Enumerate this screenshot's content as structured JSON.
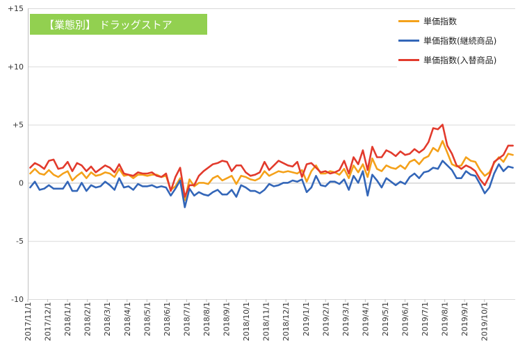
{
  "chart_data": {
    "type": "line",
    "title": "【業態別】 ドラッグストア",
    "title_bg": "#92D050",
    "ylim": [
      -10,
      15
    ],
    "y_ticks": [
      15,
      10,
      5,
      0,
      -5,
      -10
    ],
    "y_tick_labels": [
      "+15",
      "+10",
      "+5",
      "0",
      "-5",
      "-10"
    ],
    "x_tick_labels": [
      "2017/11/1",
      "2017/12/1",
      "2018/1/1",
      "2018/2/1",
      "2018/3/1",
      "2018/4/1",
      "2018/5/1",
      "2018/6/1",
      "2018/7/1",
      "2018/8/1",
      "2018/9/1",
      "2018/10/1",
      "2018/11/1",
      "2018/12/1",
      "2019/1/1",
      "2019/2/1",
      "2019/3/1",
      "2019/4/1",
      "2019/5/1",
      "2019/6/1",
      "2019/7/1",
      "2019/8/1",
      "2019/9/1",
      "2019/10/1"
    ],
    "grid": "horizontal",
    "legend_position": "top-right",
    "series": [
      {
        "name": "単価指数",
        "color": "#F4A11A",
        "values": [
          0.8,
          1.2,
          0.8,
          0.7,
          1.1,
          0.7,
          0.5,
          0.8,
          1.0,
          0.2,
          0.6,
          0.9,
          0.4,
          0.9,
          0.6,
          0.7,
          0.9,
          0.8,
          0.5,
          1.2,
          0.6,
          0.7,
          0.4,
          0.7,
          0.7,
          0.6,
          0.7,
          0.7,
          0.5,
          0.6,
          -0.6,
          -0.3,
          0.4,
          -1.5,
          0.3,
          -0.3,
          0.0,
          0.0,
          -0.1,
          0.4,
          0.6,
          0.2,
          0.4,
          0.6,
          -0.1,
          0.6,
          0.5,
          0.3,
          0.2,
          0.4,
          1.0,
          0.6,
          0.8,
          1.0,
          0.9,
          1.0,
          0.9,
          0.8,
          1.1,
          0.1,
          1.0,
          1.5,
          0.8,
          0.8,
          1.0,
          0.9,
          0.7,
          1.2,
          0.4,
          1.5,
          0.9,
          1.6,
          0.5,
          2.1,
          1.2,
          1.0,
          1.5,
          1.3,
          1.2,
          1.5,
          1.2,
          1.8,
          2.0,
          1.6,
          2.1,
          2.3,
          3.0,
          2.7,
          3.6,
          2.6,
          1.6,
          1.4,
          1.5,
          2.2,
          1.9,
          1.8,
          1.1,
          0.6,
          0.9,
          1.7,
          2.2,
          1.8,
          2.5,
          2.4
        ]
      },
      {
        "name": "単価指数(継続商品)",
        "color": "#3366B8",
        "values": [
          -0.4,
          0.1,
          -0.6,
          -0.5,
          -0.2,
          -0.5,
          -0.5,
          -0.5,
          0.1,
          -0.7,
          -0.7,
          0.0,
          -0.7,
          -0.2,
          -0.4,
          -0.3,
          0.1,
          -0.2,
          -0.6,
          0.4,
          -0.4,
          -0.3,
          -0.6,
          -0.1,
          -0.3,
          -0.3,
          -0.2,
          -0.4,
          -0.3,
          -0.4,
          -1.1,
          -0.5,
          0.2,
          -2.1,
          -0.5,
          -1.1,
          -0.8,
          -1.0,
          -1.1,
          -0.8,
          -0.6,
          -1.0,
          -1.0,
          -0.6,
          -1.2,
          -0.2,
          -0.4,
          -0.7,
          -0.7,
          -0.9,
          -0.6,
          -0.1,
          -0.3,
          -0.2,
          0.0,
          0.0,
          0.2,
          0.1,
          0.3,
          -0.8,
          -0.4,
          0.6,
          -0.2,
          -0.3,
          0.1,
          0.1,
          -0.1,
          0.3,
          -0.6,
          0.6,
          0.0,
          1.0,
          -1.1,
          0.7,
          0.2,
          -0.4,
          0.4,
          0.1,
          -0.2,
          0.1,
          -0.1,
          0.5,
          0.8,
          0.4,
          0.9,
          1.0,
          1.3,
          1.2,
          1.9,
          1.5,
          1.1,
          0.4,
          0.4,
          1.0,
          0.7,
          0.6,
          -0.1,
          -0.9,
          -0.4,
          0.8,
          1.6,
          1.0,
          1.4,
          1.3
        ]
      },
      {
        "name": "単価指数(入替商品)",
        "color": "#E23A2C",
        "values": [
          1.3,
          1.7,
          1.5,
          1.2,
          1.9,
          2.0,
          1.2,
          1.3,
          1.8,
          1.0,
          1.7,
          1.5,
          1.0,
          1.4,
          0.9,
          1.2,
          1.5,
          1.3,
          0.9,
          1.6,
          0.8,
          0.7,
          0.6,
          0.9,
          0.8,
          0.8,
          0.9,
          0.6,
          0.5,
          0.8,
          -0.7,
          0.5,
          1.3,
          -1.2,
          -0.2,
          -0.2,
          0.6,
          1.0,
          1.3,
          1.6,
          1.7,
          1.9,
          1.8,
          1.0,
          1.5,
          1.5,
          0.9,
          0.6,
          0.7,
          0.9,
          1.8,
          1.1,
          1.5,
          1.9,
          1.7,
          1.5,
          1.4,
          1.8,
          0.5,
          1.6,
          1.7,
          1.3,
          0.9,
          1.0,
          0.8,
          0.9,
          1.1,
          1.9,
          0.8,
          2.2,
          1.6,
          2.8,
          1.1,
          3.1,
          2.2,
          2.2,
          2.8,
          2.6,
          2.3,
          2.7,
          2.4,
          2.5,
          2.9,
          2.6,
          2.9,
          3.5,
          4.7,
          4.6,
          5.0,
          3.2,
          2.5,
          1.5,
          1.2,
          1.5,
          1.3,
          1.0,
          0.3,
          -0.2,
          0.6,
          1.8,
          2.1,
          2.4,
          3.2,
          3.2
        ]
      }
    ]
  }
}
